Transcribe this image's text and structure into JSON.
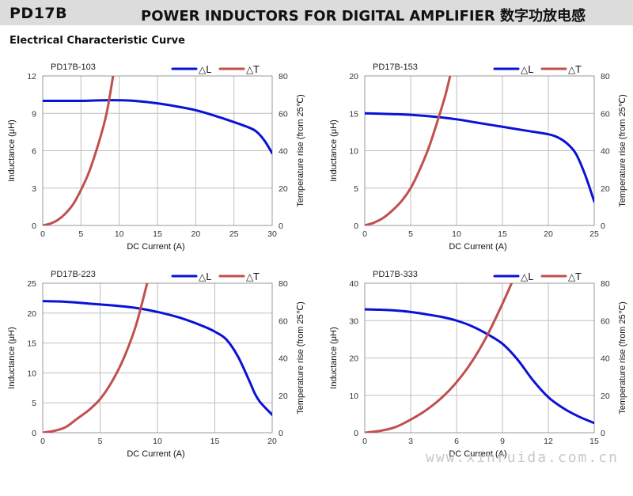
{
  "header": {
    "model": "PD17B",
    "title": "POWER INDUCTORS FOR DIGITAL AMPLIFIER  数字功放电感"
  },
  "section_title": "Electrical Characteristic Curve",
  "watermark": "www.xinruida.com.cn",
  "colors": {
    "inductance": "#0a12d6",
    "temperature": "#c0504d",
    "grid": "#bfbfbf",
    "header_bg": "#dcdcdc"
  },
  "chart_data": [
    {
      "type": "line",
      "title": "PD17B-103",
      "xlabel": "DC Current (A)",
      "ylabel": "Inductance (μH)",
      "y2label": "Temperature rise (from 25℃)",
      "xlim": [
        0,
        30
      ],
      "xticks": [
        0,
        5,
        10,
        15,
        20,
        25,
        30
      ],
      "ylim": [
        0,
        12
      ],
      "yticks": [
        0,
        3,
        6,
        9,
        12
      ],
      "y2lim": [
        0,
        80
      ],
      "y2ticks": [
        0,
        20,
        40,
        60,
        80
      ],
      "grid": true,
      "legend": "top-right",
      "series": [
        {
          "name": "△L",
          "axis": "left",
          "color": "#0a12d6",
          "x": [
            0,
            5,
            8,
            10,
            12,
            15,
            18,
            20,
            22,
            25,
            27,
            28,
            29,
            30
          ],
          "y": [
            10.0,
            10.0,
            10.05,
            10.05,
            10.0,
            9.8,
            9.5,
            9.25,
            8.9,
            8.3,
            7.85,
            7.5,
            6.8,
            5.8
          ]
        },
        {
          "name": "△T",
          "axis": "right",
          "color": "#c0504d",
          "x": [
            0,
            1,
            2,
            3,
            4,
            5,
            6,
            7,
            8,
            8.5,
            9.2
          ],
          "y": [
            0,
            1,
            3,
            6.5,
            11.5,
            19,
            28,
            40,
            54,
            63,
            80
          ]
        }
      ]
    },
    {
      "type": "line",
      "title": "PD17B-153",
      "xlabel": "DC Current (A)",
      "ylabel": "Inductance (μH)",
      "y2label": "Temperature rise (from 25℃)",
      "xlim": [
        0,
        25
      ],
      "xticks": [
        0,
        5,
        10,
        15,
        20,
        25
      ],
      "ylim": [
        0,
        20
      ],
      "yticks": [
        0,
        5,
        10,
        15,
        20
      ],
      "y2lim": [
        0,
        80
      ],
      "y2ticks": [
        0,
        20,
        40,
        60,
        80
      ],
      "grid": true,
      "legend": "top-right",
      "series": [
        {
          "name": "△L",
          "axis": "left",
          "color": "#0a12d6",
          "x": [
            0,
            3,
            5,
            8,
            10,
            12,
            15,
            18,
            20,
            21,
            22,
            23,
            24,
            25
          ],
          "y": [
            15.0,
            14.9,
            14.8,
            14.5,
            14.2,
            13.8,
            13.2,
            12.6,
            12.2,
            11.8,
            11.0,
            9.6,
            6.8,
            3.2
          ]
        },
        {
          "name": "△T",
          "axis": "right",
          "color": "#c0504d",
          "x": [
            0,
            1,
            2,
            3,
            4,
            5,
            6,
            7,
            8,
            8.8,
            9.3
          ],
          "y": [
            0,
            1.5,
            4,
            8,
            13,
            20,
            30,
            42,
            57,
            70,
            80
          ]
        }
      ]
    },
    {
      "type": "line",
      "title": "PD17B-223",
      "xlabel": "DC Current (A)",
      "ylabel": "Inductance (μH)",
      "y2label": "Temperature rise (from 25℃)",
      "xlim": [
        0,
        20
      ],
      "xticks": [
        0,
        5,
        10,
        15,
        20
      ],
      "ylim": [
        0,
        25
      ],
      "yticks": [
        0,
        5,
        10,
        15,
        20,
        25
      ],
      "y2lim": [
        0,
        80
      ],
      "y2ticks": [
        0,
        20,
        40,
        60,
        80
      ],
      "grid": true,
      "legend": "top-right",
      "series": [
        {
          "name": "△L",
          "axis": "left",
          "color": "#0a12d6",
          "x": [
            0,
            2,
            4,
            6,
            8,
            10,
            12,
            14,
            15,
            16,
            17,
            18,
            18.5,
            19,
            20
          ],
          "y": [
            22.0,
            21.9,
            21.6,
            21.3,
            20.9,
            20.2,
            19.2,
            17.8,
            16.9,
            15.6,
            12.8,
            8.7,
            6.5,
            5.0,
            3.0
          ]
        },
        {
          "name": "△T",
          "axis": "right",
          "color": "#c0504d",
          "x": [
            0,
            1,
            2,
            3,
            4,
            5,
            6,
            7,
            8,
            8.6,
            9.1
          ],
          "y": [
            0,
            1,
            3,
            7.5,
            12,
            18,
            27,
            39,
            55,
            68,
            80
          ]
        }
      ]
    },
    {
      "type": "line",
      "title": "PD17B-333",
      "xlabel": "DC Current (A)",
      "ylabel": "Inductance (μH)",
      "y2label": "Temperature rise (from 25℃)",
      "xlim": [
        0,
        15
      ],
      "xticks": [
        0,
        3,
        6,
        9,
        12,
        15
      ],
      "ylim": [
        0,
        40
      ],
      "yticks": [
        0,
        10,
        20,
        30,
        40
      ],
      "y2lim": [
        0,
        80
      ],
      "y2ticks": [
        0,
        20,
        40,
        60,
        80
      ],
      "grid": true,
      "legend": "top-right",
      "series": [
        {
          "name": "△L",
          "axis": "left",
          "color": "#0a12d6",
          "x": [
            0,
            1,
            2,
            3,
            4,
            5,
            6,
            7,
            8,
            9,
            10,
            11,
            12,
            13,
            14,
            15
          ],
          "y": [
            33.0,
            32.9,
            32.7,
            32.3,
            31.7,
            31.0,
            30.0,
            28.5,
            26.4,
            23.8,
            19.5,
            14.0,
            9.5,
            6.5,
            4.3,
            2.6
          ]
        },
        {
          "name": "△T",
          "axis": "right",
          "color": "#c0504d",
          "x": [
            0,
            1,
            2,
            3,
            4,
            5,
            6,
            7,
            8,
            9,
            9.6
          ],
          "y": [
            0,
            1,
            3,
            7,
            12,
            18.5,
            27,
            38,
            52,
            69,
            80
          ]
        }
      ]
    }
  ]
}
